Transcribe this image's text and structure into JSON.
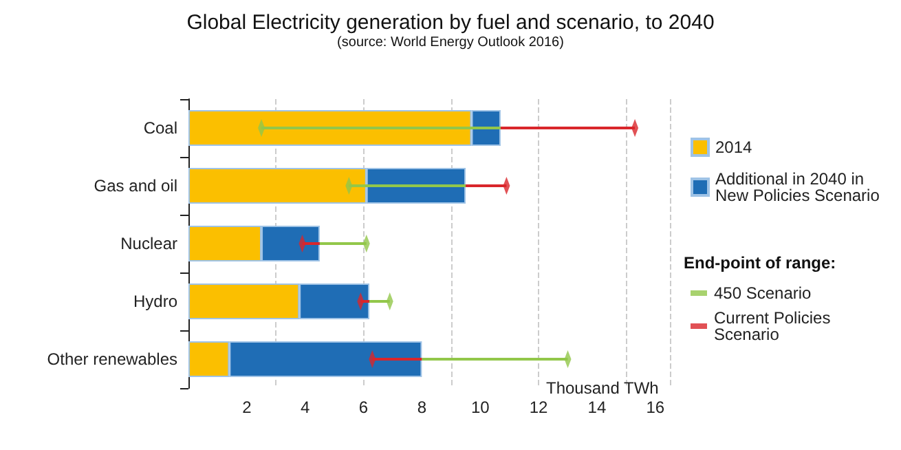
{
  "chart_data": {
    "type": "bar",
    "orientation": "horizontal",
    "stacked": true,
    "title": "Global Electricity generation by fuel and scenario, to 2040",
    "subtitle": "(source: World Energy Outlook 2016)",
    "xlabel": "Thousand TWh",
    "categories": [
      "Coal",
      "Gas and oil",
      "Nuclear",
      "Hydro",
      "Other renewables"
    ],
    "series": [
      {
        "name": "2014",
        "color": "#fbbf00",
        "values": [
          9.7,
          6.1,
          2.5,
          3.8,
          1.4
        ]
      },
      {
        "name": "Additional in 2040 in New Policies Scenario",
        "color": "#1f6db5",
        "values": [
          1.0,
          3.4,
          2.0,
          2.4,
          6.6
        ]
      },
      {
        "type": "scatter",
        "name": "450 Scenario",
        "color": "#92c74a",
        "values": [
          2.5,
          5.5,
          6.1,
          6.9,
          13.0
        ],
        "errors": [
          [
            2.5,
            10.7
          ],
          [
            5.5,
            9.5
          ],
          [
            4.5,
            6.1
          ],
          [
            6.2,
            6.9
          ],
          [
            8.0,
            13.0
          ]
        ]
      },
      {
        "type": "scatter",
        "name": "Current Policies Scenario",
        "color": "#d9262b",
        "values": [
          15.3,
          10.9,
          3.9,
          5.9,
          6.3
        ],
        "errors": [
          [
            10.7,
            15.3
          ],
          [
            9.5,
            10.9
          ],
          [
            3.9,
            4.5
          ],
          [
            5.9,
            6.2
          ],
          [
            6.3,
            8.0
          ]
        ]
      }
    ],
    "legend_title": "End-point of range:",
    "xlim": [
      0,
      16.5
    ],
    "xticks": [
      2,
      4,
      6,
      8,
      10,
      12,
      14,
      16
    ],
    "grid": "x",
    "legend": "right",
    "marker": "diamond"
  }
}
